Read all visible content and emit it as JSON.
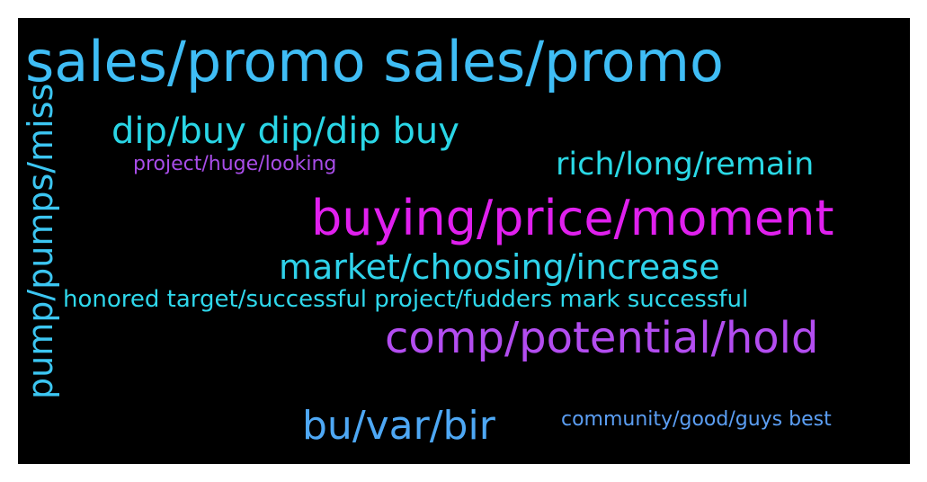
{
  "wordcloud": {
    "words": [
      {
        "text": "sales/promo sales/promo",
        "color": "#3fbdf5"
      },
      {
        "text": "buying/price/moment",
        "color": "#e020ee"
      },
      {
        "text": "comp/potential/hold",
        "color": "#b34df0"
      },
      {
        "text": "market/choosing/increase",
        "color": "#2fd2ea"
      },
      {
        "text": "dip/buy dip/dip buy",
        "color": "#2ad6e6"
      },
      {
        "text": "rich/long/remain",
        "color": "#2ad9e6"
      },
      {
        "text": "bu/var/bir",
        "color": "#4ea8f5"
      },
      {
        "text": "pump/pumps/miss",
        "color": "#3cc6f2"
      },
      {
        "text": "project/huge/looking",
        "color": "#a84de8"
      },
      {
        "text": "honored target/successful project/fudders mark successful",
        "color": "#2fd8ec"
      },
      {
        "text": "community/good/guys best",
        "color": "#5b9ef3"
      }
    ]
  }
}
